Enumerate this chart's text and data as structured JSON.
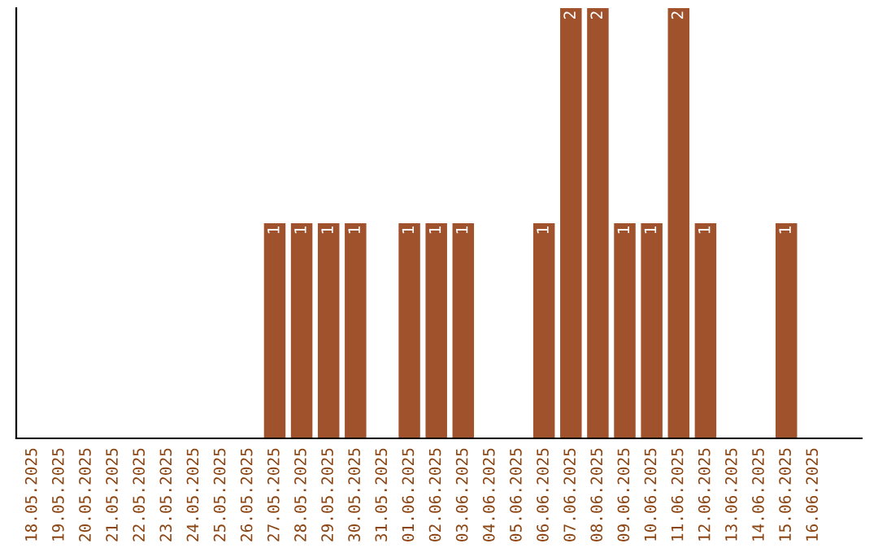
{
  "chart_data": {
    "type": "bar",
    "categories": [
      "18.05.2025",
      "19.05.2025",
      "20.05.2025",
      "21.05.2025",
      "22.05.2025",
      "23.05.2025",
      "24.05.2025",
      "25.05.2025",
      "26.05.2025",
      "27.05.2025",
      "28.05.2025",
      "29.05.2025",
      "30.05.2025",
      "31.05.2025",
      "01.06.2025",
      "02.06.2025",
      "03.06.2025",
      "04.06.2025",
      "05.06.2025",
      "06.06.2025",
      "07.06.2025",
      "08.06.2025",
      "09.06.2025",
      "10.06.2025",
      "11.06.2025",
      "12.06.2025",
      "13.06.2025",
      "14.06.2025",
      "15.06.2025",
      "16.06.2025"
    ],
    "values": [
      0,
      0,
      0,
      0,
      0,
      0,
      0,
      0,
      0,
      1,
      1,
      1,
      1,
      0,
      1,
      1,
      1,
      0,
      0,
      1,
      2,
      2,
      1,
      1,
      2,
      1,
      0,
      0,
      1,
      0
    ],
    "value_labels": [
      null,
      null,
      null,
      null,
      null,
      null,
      null,
      null,
      null,
      "1",
      "1",
      "1",
      "1",
      null,
      "1",
      "1",
      "1",
      null,
      null,
      "1",
      "2",
      "2",
      "1",
      "1",
      "2",
      "1",
      null,
      null,
      "1",
      null
    ],
    "color": "#a0522d",
    "ylim": [
      0,
      2
    ],
    "tick_labels": "x",
    "grid": false,
    "legend": false
  }
}
